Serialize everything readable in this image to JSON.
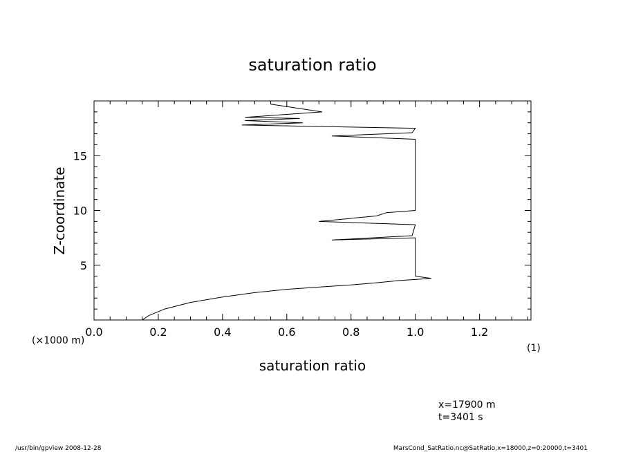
{
  "chart_data": {
    "type": "line",
    "title": "saturation ratio",
    "xlabel": "saturation ratio",
    "ylabel": "Z-coordinate",
    "xunit": "(1)",
    "yunit": "(×1000 m)",
    "xlim": [
      0,
      1.36
    ],
    "ylim": [
      0,
      20
    ],
    "xticks": [
      "0.0",
      "0.2",
      "0.4",
      "0.6",
      "0.8",
      "1.0",
      "1.2"
    ],
    "yticks": [
      "5",
      "10",
      "15"
    ],
    "grid": false,
    "series": [
      {
        "x": [
          0.15,
          0.17,
          0.22,
          0.3,
          0.4,
          0.5,
          0.6,
          0.7,
          0.8,
          0.88,
          0.95,
          1.0,
          1.05,
          1.0,
          1.0,
          1.0,
          0.74,
          0.99,
          1.0,
          0.7,
          0.88,
          0.91,
          1.0,
          1.0,
          1.0,
          0.74,
          0.99,
          1.0,
          0.46,
          0.65,
          0.47,
          0.64,
          0.47,
          0.71,
          0.55
        ],
        "y": [
          0.0,
          0.4,
          1.0,
          1.6,
          2.1,
          2.5,
          2.8,
          3.0,
          3.2,
          3.4,
          3.6,
          3.7,
          3.8,
          4.0,
          6.0,
          7.5,
          7.3,
          7.7,
          8.7,
          9.0,
          9.5,
          9.8,
          10.0,
          13.0,
          16.5,
          16.8,
          17.1,
          17.5,
          17.8,
          18.0,
          18.2,
          18.4,
          18.5,
          19.0,
          19.7
        ]
      }
    ],
    "annotations": [
      "x=17900 m",
      "t=3401 s"
    ]
  },
  "footer": {
    "left": "/usr/bin/gpview   2008-12-28",
    "right": "MarsCond_SatRatio.nc@SatRatio,x=18000,z=0:20000,t=3401"
  }
}
